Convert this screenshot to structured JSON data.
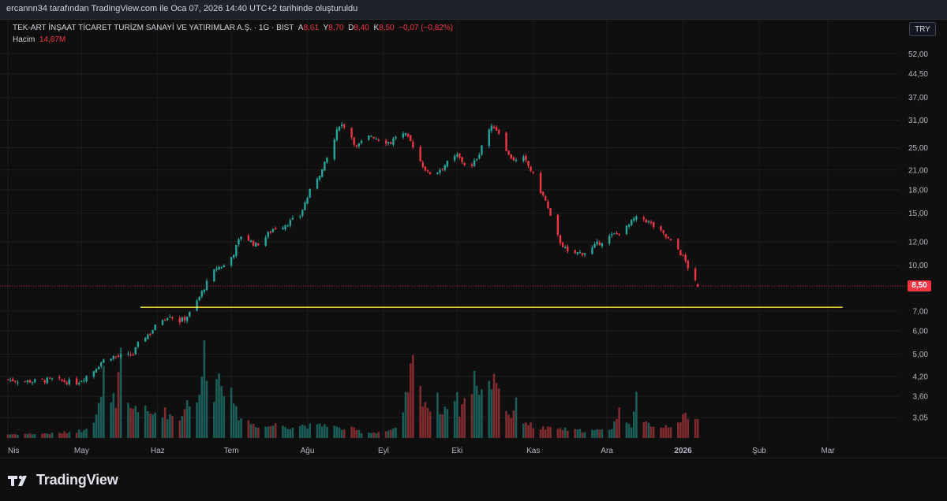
{
  "header": {
    "credit": "ercannn34 tarafından TradingView.com ile Oca 07, 2026 14:40 UTC+2 tarihinde oluşturuldu"
  },
  "legend": {
    "symbol": "TEK-ART İNŞAAT TİCARET TURİZM SANAYİ VE YATIRIMLAR A.Ş. · 1G · BIST",
    "open_label": "A",
    "open": "8,61",
    "high_label": "Y",
    "high": "8,70",
    "low_label": "D",
    "low": "8,40",
    "close_label": "K",
    "close": "8,50",
    "change": "−0,07 (−0,82%)",
    "volume_label": "Hacim",
    "volume": "14,87M"
  },
  "currency": "TRY",
  "last_price_badge": "8,50",
  "colors": {
    "up": "#26a69a",
    "down": "#f23645",
    "up_volume": "#1b5e57",
    "down_volume": "#7f2b30",
    "support_line": "#ffeb3b",
    "background": "#0f0f0f"
  },
  "footer": {
    "logo_icon": "tradingview-logo-icon",
    "logo_text": "TradingView"
  },
  "chart_data": {
    "type": "candlestick",
    "y_scale": "log",
    "y_ticks": [
      "52,00",
      "44,50",
      "37,00",
      "31,00",
      "25,00",
      "21,00",
      "18,00",
      "15,00",
      "12,00",
      "10,00",
      "8,50",
      "7,00",
      "6,00",
      "5,00",
      "4,20",
      "3,60",
      "3,05"
    ],
    "y_tick_values": [
      52,
      44.5,
      37,
      31,
      25,
      21,
      18,
      15,
      12,
      10,
      8.5,
      7,
      6,
      5,
      4.2,
      3.6,
      3.05
    ],
    "x_labels": [
      "Nis",
      "May",
      "Haz",
      "Tem",
      "Ağu",
      "Eyl",
      "Eki",
      "Kas",
      "Ara",
      "2026",
      "Şub",
      "Mar"
    ],
    "x_label_days": [
      0,
      30,
      61,
      91,
      122,
      153,
      183,
      214,
      244,
      275,
      306,
      334
    ],
    "last_day": 281,
    "support_level": {
      "value": 7.2,
      "from_day": 54,
      "to_day": 340
    },
    "current_price": 8.5,
    "price_anchors": [
      [
        0,
        4.1
      ],
      [
        5,
        4.05
      ],
      [
        12,
        4.05
      ],
      [
        18,
        4.1
      ],
      [
        22,
        4.05
      ],
      [
        28,
        4.0
      ],
      [
        30,
        4.1
      ],
      [
        35,
        4.4
      ],
      [
        38,
        4.7
      ],
      [
        41,
        4.9
      ],
      [
        44,
        4.9
      ],
      [
        48,
        4.9
      ],
      [
        51,
        5.0
      ],
      [
        54,
        5.6
      ],
      [
        58,
        5.9
      ],
      [
        62,
        6.5
      ],
      [
        66,
        6.8
      ],
      [
        69,
        6.4
      ],
      [
        72,
        6.6
      ],
      [
        75,
        7.0
      ],
      [
        78,
        7.8
      ],
      [
        82,
        9.0
      ],
      [
        85,
        9.8
      ],
      [
        89,
        10.0
      ],
      [
        92,
        11.0
      ],
      [
        95,
        12.6
      ],
      [
        98,
        12.2
      ],
      [
        101,
        11.7
      ],
      [
        104,
        12.2
      ],
      [
        108,
        13.3
      ],
      [
        112,
        13.6
      ],
      [
        116,
        14.2
      ],
      [
        119,
        14.7
      ],
      [
        122,
        17.0
      ],
      [
        125,
        19.3
      ],
      [
        128,
        21.0
      ],
      [
        132,
        25.0
      ],
      [
        135,
        30.0
      ],
      [
        138,
        29.5
      ],
      [
        142,
        25.0
      ],
      [
        145,
        26.5
      ],
      [
        148,
        27.5
      ],
      [
        152,
        26.5
      ],
      [
        156,
        26.0
      ],
      [
        159,
        28.0
      ],
      [
        162,
        27.5
      ],
      [
        165,
        25.5
      ],
      [
        168,
        22.5
      ],
      [
        171,
        20.5
      ],
      [
        174,
        20.5
      ],
      [
        177,
        21.5
      ],
      [
        180,
        22.5
      ],
      [
        183,
        23.5
      ],
      [
        186,
        22.0
      ],
      [
        189,
        21.5
      ],
      [
        192,
        24.0
      ],
      [
        195,
        28.5
      ],
      [
        198,
        29.5
      ],
      [
        201,
        27.5
      ],
      [
        204,
        23.5
      ],
      [
        207,
        22.5
      ],
      [
        210,
        23.0
      ],
      [
        213,
        21.0
      ],
      [
        216,
        18.5
      ],
      [
        219,
        16.5
      ],
      [
        222,
        13.5
      ],
      [
        225,
        12.0
      ],
      [
        228,
        11.0
      ],
      [
        231,
        11.0
      ],
      [
        234,
        11.0
      ],
      [
        237,
        11.2
      ],
      [
        240,
        11.8
      ],
      [
        243,
        12.2
      ],
      [
        246,
        12.6
      ],
      [
        249,
        12.9
      ],
      [
        252,
        13.4
      ],
      [
        255,
        14.3
      ],
      [
        258,
        14.5
      ],
      [
        261,
        14.0
      ],
      [
        264,
        13.3
      ],
      [
        267,
        12.7
      ],
      [
        270,
        12.0
      ],
      [
        273,
        11.3
      ],
      [
        276,
        10.3
      ],
      [
        279,
        9.0
      ],
      [
        281,
        8.5
      ]
    ],
    "volume_anchors": [
      [
        0,
        0.04
      ],
      [
        20,
        0.05
      ],
      [
        30,
        0.08
      ],
      [
        35,
        0.2
      ],
      [
        38,
        0.4
      ],
      [
        40,
        0.9
      ],
      [
        42,
        0.5
      ],
      [
        44,
        0.3
      ],
      [
        46,
        0.85
      ],
      [
        48,
        0.35
      ],
      [
        50,
        0.3
      ],
      [
        52,
        0.35
      ],
      [
        55,
        0.3
      ],
      [
        58,
        0.25
      ],
      [
        62,
        0.3
      ],
      [
        66,
        0.25
      ],
      [
        70,
        0.2
      ],
      [
        72,
        0.35
      ],
      [
        75,
        0.45
      ],
      [
        78,
        0.4
      ],
      [
        80,
        1.0
      ],
      [
        82,
        0.55
      ],
      [
        84,
        0.5
      ],
      [
        86,
        0.7
      ],
      [
        88,
        0.6
      ],
      [
        90,
        1.05
      ],
      [
        92,
        0.3
      ],
      [
        96,
        0.2
      ],
      [
        100,
        0.15
      ],
      [
        105,
        0.12
      ],
      [
        110,
        0.15
      ],
      [
        115,
        0.12
      ],
      [
        120,
        0.14
      ],
      [
        125,
        0.12
      ],
      [
        130,
        0.15
      ],
      [
        135,
        0.1
      ],
      [
        140,
        0.1
      ],
      [
        145,
        0.06
      ],
      [
        150,
        0.06
      ],
      [
        155,
        0.08
      ],
      [
        160,
        0.1
      ],
      [
        162,
        0.4
      ],
      [
        164,
        0.7
      ],
      [
        166,
        0.85
      ],
      [
        168,
        0.5
      ],
      [
        170,
        0.4
      ],
      [
        172,
        0.3
      ],
      [
        174,
        0.5
      ],
      [
        176,
        0.3
      ],
      [
        178,
        0.35
      ],
      [
        180,
        0.3
      ],
      [
        182,
        0.5
      ],
      [
        184,
        0.3
      ],
      [
        186,
        0.4
      ],
      [
        188,
        0.45
      ],
      [
        190,
        0.7
      ],
      [
        192,
        0.4
      ],
      [
        194,
        0.85
      ],
      [
        196,
        0.55
      ],
      [
        198,
        0.7
      ],
      [
        200,
        0.6
      ],
      [
        202,
        0.3
      ],
      [
        205,
        0.25
      ],
      [
        208,
        0.4
      ],
      [
        210,
        0.2
      ],
      [
        214,
        0.12
      ],
      [
        220,
        0.1
      ],
      [
        225,
        0.1
      ],
      [
        230,
        0.08
      ],
      [
        235,
        0.08
      ],
      [
        240,
        0.08
      ],
      [
        244,
        0.08
      ],
      [
        246,
        0.12
      ],
      [
        248,
        0.22
      ],
      [
        250,
        0.35
      ],
      [
        252,
        0.2
      ],
      [
        254,
        0.15
      ],
      [
        256,
        0.4
      ],
      [
        258,
        0.15
      ],
      [
        262,
        0.15
      ],
      [
        266,
        0.12
      ],
      [
        270,
        0.14
      ],
      [
        272,
        0.2
      ],
      [
        274,
        0.2
      ],
      [
        276,
        0.22
      ],
      [
        278,
        0.2
      ],
      [
        281,
        0.18
      ]
    ]
  }
}
